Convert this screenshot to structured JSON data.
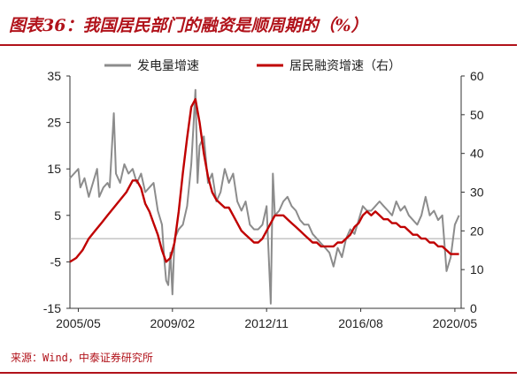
{
  "title": "图表36：我国居民部门的融资是顺周期的（%）",
  "source": "来源：Wind，中泰证券研究所",
  "colors": {
    "accent": "#b1121a",
    "series_gray": "#8c8c8c",
    "series_red": "#c00000",
    "zero_line": "#a6a6a6"
  },
  "chart_data": {
    "type": "line",
    "title": "",
    "xlabel": "",
    "ylabel": "",
    "x_range": [
      "2005-01",
      "2020-08"
    ],
    "xticks": [
      "2005/05",
      "2009/02",
      "2012/11",
      "2016/08",
      "2020/05"
    ],
    "y_left": {
      "min": -15,
      "max": 35,
      "ticks": [
        -15,
        -5,
        5,
        15,
        25,
        35
      ]
    },
    "y_right": {
      "min": 0,
      "max": 60,
      "ticks": [
        0,
        10,
        20,
        30,
        40,
        50,
        60
      ]
    },
    "grid": false,
    "zero_line": 0,
    "legend_position": "top-right",
    "series": [
      {
        "name": "发电量增速",
        "axis": "left",
        "color": "#8c8c8c",
        "points": [
          [
            "2005-01",
            13
          ],
          [
            "2005-03",
            14
          ],
          [
            "2005-05",
            15
          ],
          [
            "2005-06",
            11
          ],
          [
            "2005-08",
            13
          ],
          [
            "2005-10",
            9
          ],
          [
            "2005-12",
            12
          ],
          [
            "2006-02",
            15
          ],
          [
            "2006-03",
            9
          ],
          [
            "2006-05",
            11
          ],
          [
            "2006-07",
            12
          ],
          [
            "2006-08",
            11
          ],
          [
            "2006-10",
            27
          ],
          [
            "2006-11",
            14
          ],
          [
            "2007-01",
            12
          ],
          [
            "2007-03",
            16
          ],
          [
            "2007-05",
            14
          ],
          [
            "2007-07",
            15
          ],
          [
            "2007-09",
            12
          ],
          [
            "2007-11",
            14
          ],
          [
            "2008-01",
            10
          ],
          [
            "2008-03",
            11
          ],
          [
            "2008-05",
            12
          ],
          [
            "2008-07",
            6
          ],
          [
            "2008-09",
            3
          ],
          [
            "2008-10",
            -4
          ],
          [
            "2008-11",
            -9
          ],
          [
            "2008-12",
            -10
          ],
          [
            "2009-01",
            -3
          ],
          [
            "2009-02",
            -12
          ],
          [
            "2009-03",
            0
          ],
          [
            "2009-05",
            2
          ],
          [
            "2009-07",
            3
          ],
          [
            "2009-09",
            7
          ],
          [
            "2009-11",
            16
          ],
          [
            "2009-12",
            24
          ],
          [
            "2010-01",
            32
          ],
          [
            "2010-02",
            12
          ],
          [
            "2010-03",
            20
          ],
          [
            "2010-05",
            22
          ],
          [
            "2010-07",
            12
          ],
          [
            "2010-09",
            14
          ],
          [
            "2010-11",
            8
          ],
          [
            "2011-01",
            10
          ],
          [
            "2011-03",
            15
          ],
          [
            "2011-05",
            12
          ],
          [
            "2011-07",
            14
          ],
          [
            "2011-09",
            8
          ],
          [
            "2011-11",
            6
          ],
          [
            "2012-01",
            8
          ],
          [
            "2012-03",
            3
          ],
          [
            "2012-05",
            2
          ],
          [
            "2012-07",
            2
          ],
          [
            "2012-09",
            3
          ],
          [
            "2012-11",
            7
          ],
          [
            "2013-01",
            -14
          ],
          [
            "2013-02",
            14
          ],
          [
            "2013-03",
            5
          ],
          [
            "2013-05",
            6
          ],
          [
            "2013-07",
            8
          ],
          [
            "2013-09",
            9
          ],
          [
            "2013-11",
            7
          ],
          [
            "2014-01",
            6
          ],
          [
            "2014-03",
            4
          ],
          [
            "2014-05",
            3
          ],
          [
            "2014-07",
            3
          ],
          [
            "2014-09",
            1
          ],
          [
            "2014-11",
            0
          ],
          [
            "2015-01",
            -1
          ],
          [
            "2015-03",
            -2
          ],
          [
            "2015-05",
            -3
          ],
          [
            "2015-07",
            -6
          ],
          [
            "2015-09",
            -2
          ],
          [
            "2015-11",
            -4
          ],
          [
            "2016-01",
            0
          ],
          [
            "2016-03",
            2
          ],
          [
            "2016-05",
            1
          ],
          [
            "2016-07",
            4
          ],
          [
            "2016-09",
            7
          ],
          [
            "2016-11",
            6
          ],
          [
            "2017-01",
            6
          ],
          [
            "2017-03",
            7
          ],
          [
            "2017-05",
            8
          ],
          [
            "2017-07",
            7
          ],
          [
            "2017-09",
            6
          ],
          [
            "2017-11",
            5
          ],
          [
            "2018-01",
            8
          ],
          [
            "2018-03",
            6
          ],
          [
            "2018-05",
            7
          ],
          [
            "2018-07",
            5
          ],
          [
            "2018-09",
            4
          ],
          [
            "2018-11",
            3
          ],
          [
            "2019-01",
            5
          ],
          [
            "2019-03",
            9
          ],
          [
            "2019-05",
            5
          ],
          [
            "2019-07",
            6
          ],
          [
            "2019-09",
            4
          ],
          [
            "2019-11",
            5
          ],
          [
            "2020-01",
            -7
          ],
          [
            "2020-03",
            -4
          ],
          [
            "2020-05",
            3
          ],
          [
            "2020-07",
            5
          ]
        ]
      },
      {
        "name": "居民融资增速（右）",
        "axis": "right",
        "color": "#c00000",
        "points": [
          [
            "2005-01",
            12
          ],
          [
            "2005-04",
            13
          ],
          [
            "2005-07",
            15
          ],
          [
            "2005-10",
            18
          ],
          [
            "2006-01",
            20
          ],
          [
            "2006-04",
            22
          ],
          [
            "2006-07",
            24
          ],
          [
            "2006-10",
            26
          ],
          [
            "2007-01",
            28
          ],
          [
            "2007-04",
            30
          ],
          [
            "2007-07",
            33
          ],
          [
            "2007-09",
            33
          ],
          [
            "2007-11",
            31
          ],
          [
            "2008-01",
            27
          ],
          [
            "2008-03",
            25
          ],
          [
            "2008-05",
            22
          ],
          [
            "2008-07",
            19
          ],
          [
            "2008-09",
            15
          ],
          [
            "2008-11",
            12
          ],
          [
            "2009-01",
            13
          ],
          [
            "2009-03",
            17
          ],
          [
            "2009-05",
            25
          ],
          [
            "2009-07",
            35
          ],
          [
            "2009-09",
            44
          ],
          [
            "2009-11",
            52
          ],
          [
            "2010-01",
            54
          ],
          [
            "2010-03",
            48
          ],
          [
            "2010-05",
            40
          ],
          [
            "2010-07",
            34
          ],
          [
            "2010-09",
            30
          ],
          [
            "2010-11",
            28
          ],
          [
            "2011-01",
            27
          ],
          [
            "2011-03",
            26
          ],
          [
            "2011-05",
            26
          ],
          [
            "2011-07",
            24
          ],
          [
            "2011-09",
            22
          ],
          [
            "2011-11",
            20
          ],
          [
            "2012-01",
            19
          ],
          [
            "2012-03",
            18
          ],
          [
            "2012-05",
            17
          ],
          [
            "2012-07",
            17
          ],
          [
            "2012-09",
            18
          ],
          [
            "2012-11",
            20
          ],
          [
            "2013-01",
            22
          ],
          [
            "2013-03",
            24
          ],
          [
            "2013-05",
            24
          ],
          [
            "2013-07",
            24
          ],
          [
            "2013-09",
            23
          ],
          [
            "2013-11",
            22
          ],
          [
            "2014-01",
            21
          ],
          [
            "2014-03",
            20
          ],
          [
            "2014-05",
            19
          ],
          [
            "2014-07",
            18
          ],
          [
            "2014-09",
            17
          ],
          [
            "2014-11",
            17
          ],
          [
            "2015-01",
            16
          ],
          [
            "2015-03",
            16
          ],
          [
            "2015-05",
            16
          ],
          [
            "2015-07",
            16
          ],
          [
            "2015-09",
            17
          ],
          [
            "2015-11",
            17
          ],
          [
            "2016-01",
            18
          ],
          [
            "2016-03",
            19
          ],
          [
            "2016-05",
            21
          ],
          [
            "2016-07",
            22
          ],
          [
            "2016-09",
            24
          ],
          [
            "2016-11",
            25
          ],
          [
            "2017-01",
            24
          ],
          [
            "2017-03",
            25
          ],
          [
            "2017-05",
            24
          ],
          [
            "2017-07",
            23
          ],
          [
            "2017-09",
            23
          ],
          [
            "2017-11",
            22
          ],
          [
            "2018-01",
            22
          ],
          [
            "2018-03",
            21
          ],
          [
            "2018-05",
            21
          ],
          [
            "2018-07",
            20
          ],
          [
            "2018-09",
            19
          ],
          [
            "2018-11",
            19
          ],
          [
            "2019-01",
            18
          ],
          [
            "2019-03",
            18
          ],
          [
            "2019-05",
            17
          ],
          [
            "2019-07",
            17
          ],
          [
            "2019-09",
            16
          ],
          [
            "2019-11",
            16
          ],
          [
            "2020-01",
            15
          ],
          [
            "2020-03",
            14
          ],
          [
            "2020-05",
            14
          ],
          [
            "2020-07",
            14
          ]
        ]
      }
    ]
  }
}
